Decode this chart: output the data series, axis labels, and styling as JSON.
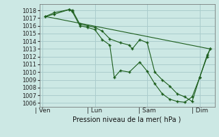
{
  "xlabel": "Pression niveau de la mer( hPa )",
  "bg_color": "#cce8e4",
  "grid_color": "#aacccc",
  "line_color": "#1a5c1a",
  "ylim": [
    1005.5,
    1018.8
  ],
  "y_ticks": [
    1006,
    1007,
    1008,
    1009,
    1010,
    1011,
    1012,
    1013,
    1014,
    1015,
    1016,
    1017,
    1018
  ],
  "x_tick_labels": [
    "| Ven",
    "| Lun",
    "| Sam",
    "| Dim"
  ],
  "x_tick_positions": [
    0,
    3.5,
    7,
    10.5
  ],
  "xlim": [
    -0.2,
    11.5
  ],
  "line1_x": [
    0.2,
    0.8,
    1.8,
    2.0,
    2.5,
    3.0,
    3.5,
    4.0,
    4.5,
    4.8,
    5.2,
    5.8,
    6.5,
    7.0,
    7.5,
    8.0,
    8.5,
    9.0,
    9.5,
    10.0,
    10.5,
    11.0,
    11.2
  ],
  "line1_y": [
    1017.2,
    1017.7,
    1018.1,
    1017.8,
    1016.0,
    1015.8,
    1015.5,
    1014.2,
    1013.5,
    1009.3,
    1010.2,
    1010.0,
    1011.3,
    1010.1,
    1008.5,
    1007.2,
    1006.5,
    1006.2,
    1006.1,
    1006.8,
    1009.3,
    1012.0,
    1013.0
  ],
  "line2_x": [
    0.2,
    0.8,
    1.8,
    2.0,
    2.5,
    3.0,
    3.5,
    4.0,
    4.5,
    5.2,
    5.8,
    6.0,
    6.5,
    7.0,
    7.5,
    8.0,
    8.5,
    9.0,
    9.5,
    10.0,
    10.5,
    11.0,
    11.2
  ],
  "line2_y": [
    1017.2,
    1017.5,
    1018.1,
    1018.0,
    1016.2,
    1016.0,
    1015.8,
    1015.3,
    1014.3,
    1013.8,
    1013.5,
    1013.0,
    1014.2,
    1013.8,
    1010.0,
    1009.0,
    1008.2,
    1007.2,
    1006.8,
    1006.2,
    1009.3,
    1012.2,
    1013.0
  ],
  "line3_x": [
    0.2,
    11.2
  ],
  "line3_y": [
    1017.2,
    1013.0
  ]
}
